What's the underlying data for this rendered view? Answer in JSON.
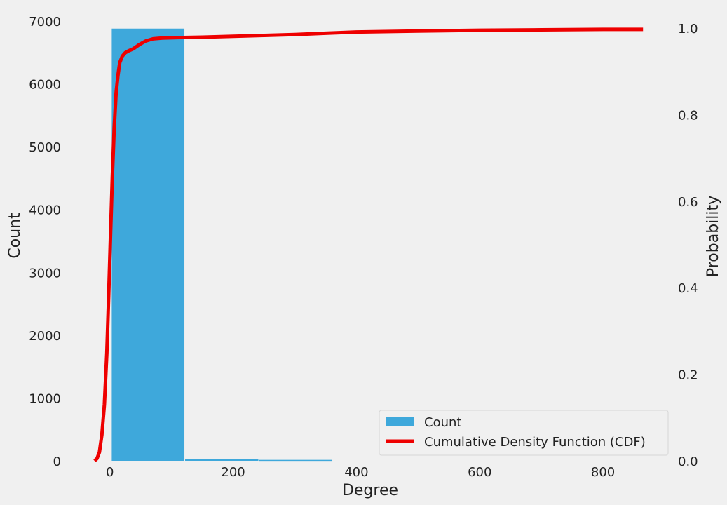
{
  "chart_data": {
    "type": "bar",
    "xlabel": "Degree",
    "ylabel": "Count",
    "y2label": "Probability",
    "xlim": [
      -35,
      900
    ],
    "ylim": [
      0,
      7000
    ],
    "y2lim": [
      0.0,
      1.0
    ],
    "grid": false,
    "legend_placement": "lower-right",
    "x_ticks": [
      "0",
      "200",
      "400",
      "600",
      "800"
    ],
    "x_tick_values": [
      0,
      200,
      400,
      600,
      800
    ],
    "y_ticks": [
      "0",
      "1000",
      "2000",
      "3000",
      "4000",
      "5000",
      "6000",
      "7000"
    ],
    "y_tick_values": [
      0,
      1000,
      2000,
      3000,
      4000,
      5000,
      6000,
      7000
    ],
    "y2_ticks": [
      "0.0",
      "0.2",
      "0.4",
      "0.6",
      "0.8",
      "1.0"
    ],
    "y2_tick_values": [
      0.0,
      0.2,
      0.4,
      0.6,
      0.8,
      1.0
    ],
    "series": [
      {
        "name": "Count",
        "kind": "histogram",
        "color": "#3ea8db",
        "bins": [
          {
            "x0": 3,
            "x1": 122,
            "value": 6880
          },
          {
            "x0": 122,
            "x1": 242,
            "value": 25
          },
          {
            "x0": 242,
            "x1": 362,
            "value": 15
          }
        ]
      },
      {
        "name": "Cumulative Density Function (CDF)",
        "kind": "line",
        "axis": "right",
        "color": "#ee0000",
        "x": [
          -25,
          -21,
          -17,
          -13,
          -9,
          -5,
          -2,
          1,
          4,
          7,
          10,
          13,
          16,
          20,
          25,
          30,
          38,
          48,
          58,
          70,
          85,
          110,
          150,
          200,
          250,
          300,
          350,
          400,
          500,
          600,
          700,
          800,
          865
        ],
        "y": [
          0.0,
          0.005,
          0.02,
          0.06,
          0.13,
          0.25,
          0.38,
          0.52,
          0.66,
          0.77,
          0.85,
          0.89,
          0.92,
          0.935,
          0.943,
          0.947,
          0.952,
          0.962,
          0.97,
          0.975,
          0.977,
          0.978,
          0.979,
          0.981,
          0.983,
          0.985,
          0.988,
          0.991,
          0.993,
          0.995,
          0.996,
          0.997,
          0.997
        ]
      }
    ]
  }
}
